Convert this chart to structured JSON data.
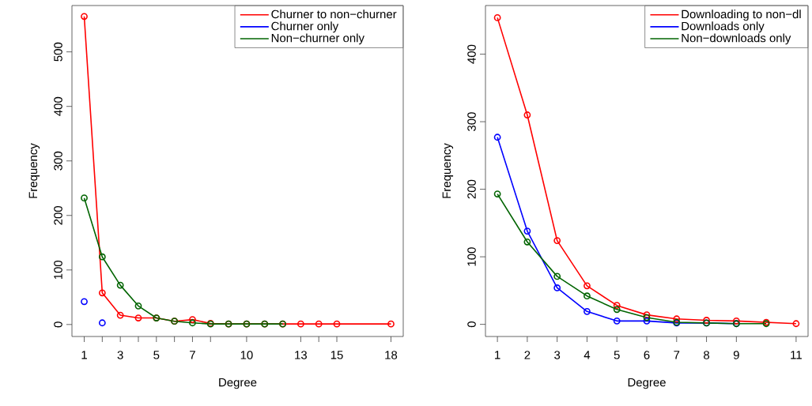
{
  "chart_data": [
    {
      "type": "line",
      "xlabel": "Degree",
      "ylabel": "Frequency",
      "xlim": [
        0.32,
        18.68
      ],
      "ylim": [
        -22,
        585
      ],
      "xticks": [
        1,
        {
          "value": 2,
          "label": null
        },
        3,
        {
          "value": 4,
          "label": null
        },
        5,
        {
          "value": 6,
          "label": null
        },
        7,
        {
          "value": 8,
          "label": null
        },
        10,
        13,
        {
          "value": 14,
          "label": null
        },
        15,
        18
      ],
      "yticks": [
        0,
        100,
        200,
        300,
        400,
        500
      ],
      "marker": "circle",
      "legend": "top right",
      "series": [
        {
          "name": "Churner to non−churner",
          "color": "#ff0000",
          "x": [
            1,
            2,
            3,
            4,
            5,
            6,
            7,
            8,
            9,
            10,
            11,
            12,
            13,
            14,
            15,
            18
          ],
          "values": [
            565,
            58,
            17,
            12,
            12,
            6,
            9,
            2,
            1,
            1,
            1,
            1,
            1,
            1,
            1,
            1
          ]
        },
        {
          "name": "Churner only",
          "color": "#0000ff",
          "type": "scatter",
          "x": [
            1,
            2
          ],
          "values": [
            42,
            3
          ]
        },
        {
          "name": "Non−churner only",
          "color": "#006400",
          "x": [
            1,
            2,
            3,
            4,
            5,
            6,
            7,
            8,
            9,
            10,
            11,
            12
          ],
          "values": [
            232,
            124,
            72,
            34,
            12,
            6,
            3,
            1,
            1,
            1,
            1,
            1
          ]
        }
      ]
    },
    {
      "type": "line",
      "xlabel": "Degree",
      "ylabel": "Frequency",
      "xlim": [
        0.6,
        11.4
      ],
      "ylim": [
        -18,
        472
      ],
      "xticks": [
        1,
        2,
        3,
        4,
        5,
        6,
        7,
        8,
        9,
        11
      ],
      "yticks": [
        0,
        100,
        200,
        300,
        400
      ],
      "marker": "circle",
      "legend": "top right",
      "series": [
        {
          "name": "Downloading to non−dl",
          "color": "#ff0000",
          "x": [
            1,
            2,
            3,
            4,
            5,
            6,
            7,
            8,
            9,
            10,
            11
          ],
          "values": [
            454,
            310,
            124,
            57,
            28,
            14,
            8,
            6,
            5,
            3,
            1
          ]
        },
        {
          "name": "Downloads only",
          "color": "#0000ff",
          "x": [
            1,
            2,
            3,
            4,
            5,
            6,
            7,
            8,
            9
          ],
          "values": [
            277,
            138,
            54,
            19,
            5,
            5,
            2,
            2,
            1
          ]
        },
        {
          "name": "Non−downloads only",
          "color": "#006400",
          "x": [
            1,
            2,
            3,
            4,
            5,
            6,
            7,
            8,
            9,
            10
          ],
          "values": [
            193,
            122,
            71,
            42,
            22,
            10,
            3,
            2,
            1,
            1
          ]
        }
      ]
    }
  ]
}
